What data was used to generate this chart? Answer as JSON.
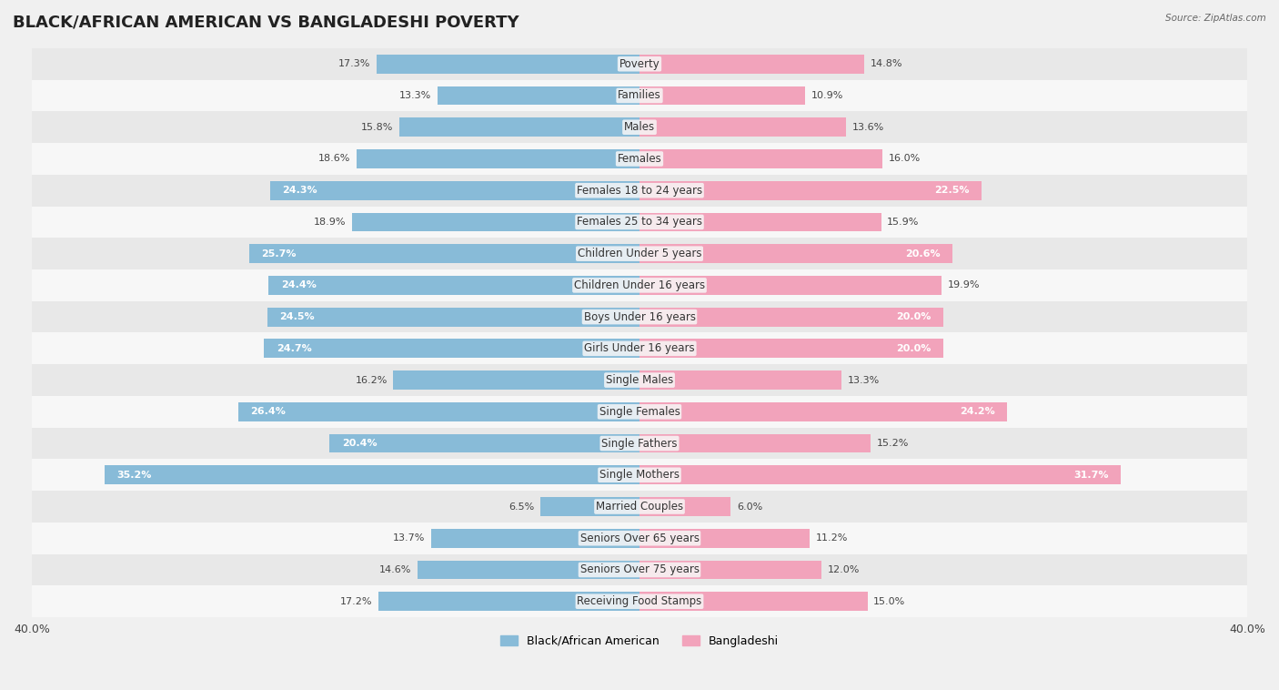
{
  "title": "BLACK/AFRICAN AMERICAN VS BANGLADESHI POVERTY",
  "source": "Source: ZipAtlas.com",
  "categories": [
    "Poverty",
    "Families",
    "Males",
    "Females",
    "Females 18 to 24 years",
    "Females 25 to 34 years",
    "Children Under 5 years",
    "Children Under 16 years",
    "Boys Under 16 years",
    "Girls Under 16 years",
    "Single Males",
    "Single Females",
    "Single Fathers",
    "Single Mothers",
    "Married Couples",
    "Seniors Over 65 years",
    "Seniors Over 75 years",
    "Receiving Food Stamps"
  ],
  "black_values": [
    17.3,
    13.3,
    15.8,
    18.6,
    24.3,
    18.9,
    25.7,
    24.4,
    24.5,
    24.7,
    16.2,
    26.4,
    20.4,
    35.2,
    6.5,
    13.7,
    14.6,
    17.2
  ],
  "bangladeshi_values": [
    14.8,
    10.9,
    13.6,
    16.0,
    22.5,
    15.9,
    20.6,
    19.9,
    20.0,
    20.0,
    13.3,
    24.2,
    15.2,
    31.7,
    6.0,
    11.2,
    12.0,
    15.0
  ],
  "black_color": "#88bbd8",
  "bangladeshi_color": "#f2a3bb",
  "black_label": "Black/African American",
  "bangladeshi_label": "Bangladeshi",
  "xlim": 40.0,
  "background_color": "#f0f0f0",
  "row_bg_light": "#f7f7f7",
  "row_bg_dark": "#e8e8e8",
  "bar_height": 0.6,
  "title_fontsize": 13,
  "label_fontsize": 8.5,
  "value_fontsize": 8,
  "axis_label_fontsize": 9,
  "white_text_threshold": 20.0
}
